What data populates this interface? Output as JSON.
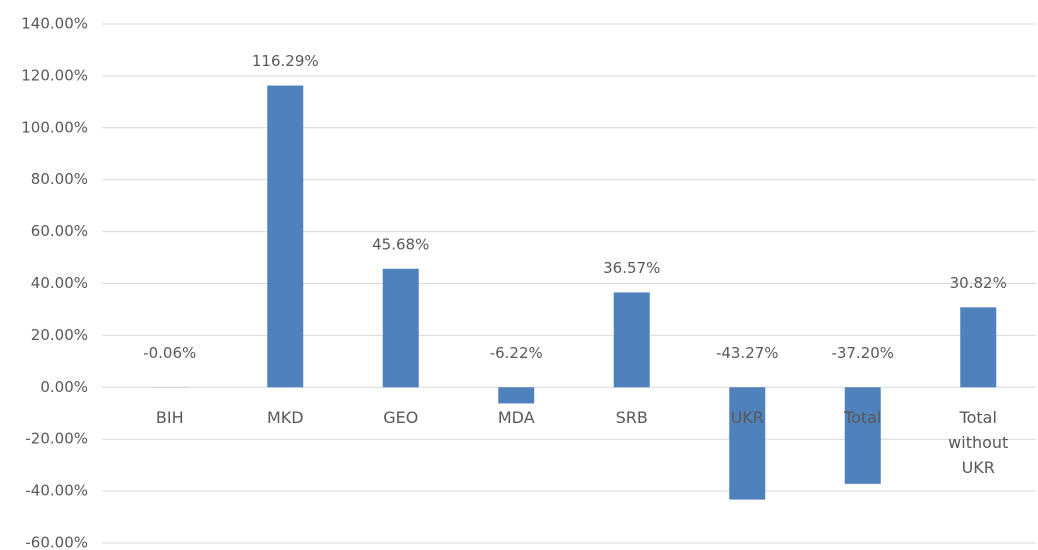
{
  "chart_data": {
    "type": "bar",
    "categories": [
      "BIH",
      "MKD",
      "GEO",
      "MDA",
      "SRB",
      "UKR",
      "Total",
      "Total without UKR"
    ],
    "values": [
      -0.06,
      116.29,
      45.68,
      -6.22,
      36.57,
      -43.27,
      -37.2,
      30.82
    ],
    "value_labels": [
      "-0.06%",
      "116.29%",
      "45.68%",
      "-6.22%",
      "36.57%",
      "-43.27%",
      "-37.20%",
      "30.82%"
    ],
    "color": "#4f81bd",
    "ylim": [
      -60,
      140
    ],
    "yticks": [
      {
        "value": -60,
        "label": "-60.00%"
      },
      {
        "value": -40,
        "label": "-40.00%"
      },
      {
        "value": -20,
        "label": "-20.00%"
      },
      {
        "value": 0,
        "label": "0.00%"
      },
      {
        "value": 20,
        "label": "20.00%"
      },
      {
        "value": 40,
        "label": "40.00%"
      },
      {
        "value": 60,
        "label": "60.00%"
      },
      {
        "value": 80,
        "label": "80.00%"
      },
      {
        "value": 100,
        "label": "100.00%"
      },
      {
        "value": 120,
        "label": "120.00%"
      },
      {
        "value": 140,
        "label": "140.00%"
      }
    ],
    "grid": true
  }
}
